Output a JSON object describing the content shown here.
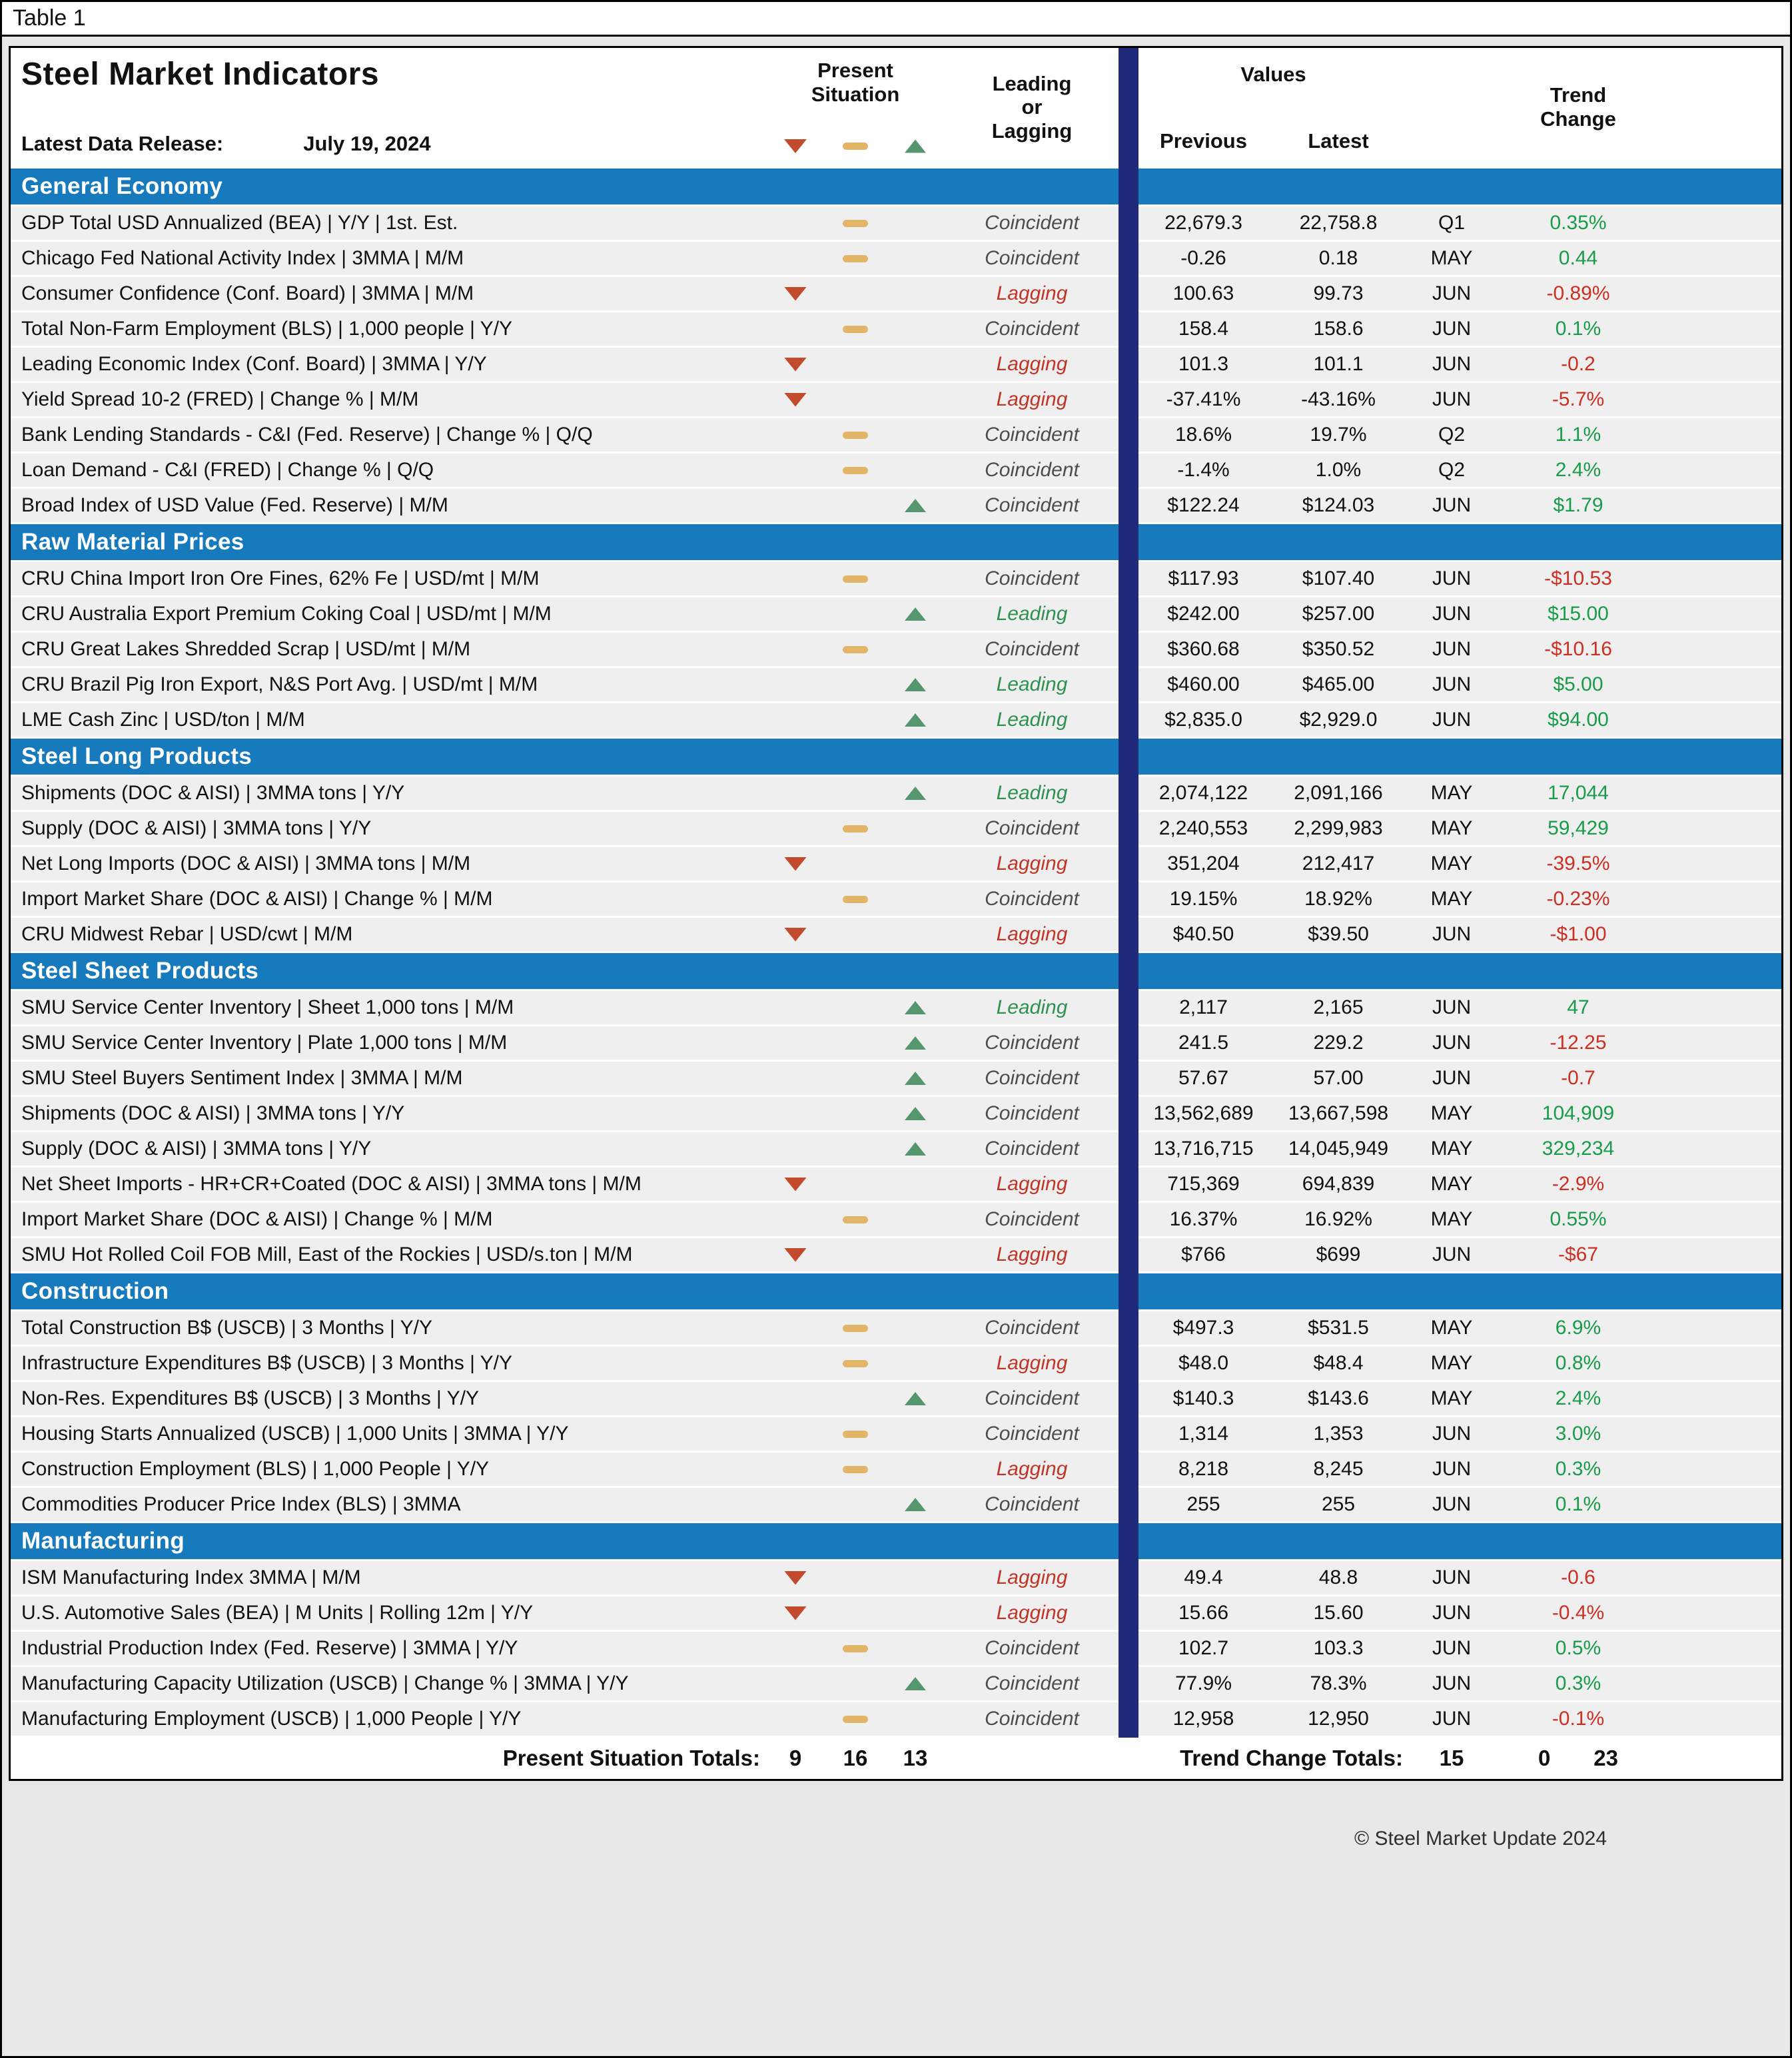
{
  "page": {
    "table_label": "Table 1",
    "copyright": "© Steel Market Update 2024"
  },
  "header": {
    "title": "Steel Market Indicators",
    "release_label": "Latest Data Release:",
    "release_date": "July 19, 2024",
    "col_present_situation": "Present\nSituation",
    "col_leading_or_lagging": "Leading\nor\nLagging",
    "col_values": "Values",
    "col_previous": "Previous",
    "col_latest": "Latest",
    "col_trend_change": "Trend\nChange"
  },
  "icons": {
    "down": "red-down-triangle",
    "flat": "tan-dash",
    "up": "green-up-triangle"
  },
  "colors": {
    "section_bar": "#177abd",
    "divider_bar": "#1f2a7a",
    "down_red": "#c24b2e",
    "flat_tan": "#e2b568",
    "up_green": "#55966e",
    "trend_up_text": "#199c49",
    "trend_down_text": "#cb3023",
    "lagging_text": "#c13526",
    "leading_text": "#2e9150",
    "row_gray": "#f0efef"
  },
  "chart_data": {
    "type": "table",
    "title": "Steel Market Indicators",
    "columns": [
      "Indicator",
      "Present Situation",
      "Leading or Lagging",
      "Previous",
      "Latest",
      "Period",
      "Trend Change"
    ],
    "sections": [
      {
        "title": "General Economy",
        "rows": [
          {
            "name": "GDP Total USD Annualized (BEA) | Y/Y | 1st. Est.",
            "situation": "flat",
            "classification": "Coincident",
            "previous": "22,679.3",
            "latest": "22,758.8",
            "period": "Q1",
            "trend": "0.35%",
            "trend_dir": "up"
          },
          {
            "name": "Chicago Fed National Activity Index | 3MMA | M/M",
            "situation": "flat",
            "classification": "Coincident",
            "previous": "-0.26",
            "latest": "0.18",
            "period": "MAY",
            "trend": "0.44",
            "trend_dir": "up"
          },
          {
            "name": "Consumer Confidence (Conf. Board) | 3MMA | M/M",
            "situation": "down",
            "classification": "Lagging",
            "previous": "100.63",
            "latest": "99.73",
            "period": "JUN",
            "trend": "-0.89%",
            "trend_dir": "down"
          },
          {
            "name": "Total Non-Farm Employment (BLS) | 1,000 people | Y/Y",
            "situation": "flat",
            "classification": "Coincident",
            "previous": "158.4",
            "latest": "158.6",
            "period": "JUN",
            "trend": "0.1%",
            "trend_dir": "up"
          },
          {
            "name": "Leading Economic Index (Conf. Board) | 3MMA | Y/Y",
            "situation": "down",
            "classification": "Lagging",
            "previous": "101.3",
            "latest": "101.1",
            "period": "JUN",
            "trend": "-0.2",
            "trend_dir": "down"
          },
          {
            "name": "Yield Spread 10-2 (FRED) | Change % | M/M",
            "situation": "down",
            "classification": "Lagging",
            "previous": "-37.41%",
            "latest": "-43.16%",
            "period": "JUN",
            "trend": "-5.7%",
            "trend_dir": "down"
          },
          {
            "name": "Bank Lending Standards - C&I (Fed. Reserve) | Change % | Q/Q",
            "situation": "flat",
            "classification": "Coincident",
            "previous": "18.6%",
            "latest": "19.7%",
            "period": "Q2",
            "trend": "1.1%",
            "trend_dir": "up"
          },
          {
            "name": "Loan Demand - C&I (FRED) | Change % | Q/Q",
            "situation": "flat",
            "classification": "Coincident",
            "previous": "-1.4%",
            "latest": "1.0%",
            "period": "Q2",
            "trend": "2.4%",
            "trend_dir": "up"
          },
          {
            "name": "Broad Index of USD Value (Fed. Reserve) | M/M",
            "situation": "up",
            "classification": "Coincident",
            "previous": "$122.24",
            "latest": "$124.03",
            "period": "JUN",
            "trend": "$1.79",
            "trend_dir": "up"
          }
        ]
      },
      {
        "title": "Raw Material Prices",
        "rows": [
          {
            "name": "CRU China Import Iron Ore Fines, 62% Fe | USD/mt | M/M",
            "situation": "flat",
            "classification": "Coincident",
            "previous": "$117.93",
            "latest": "$107.40",
            "period": "JUN",
            "trend": "-$10.53",
            "trend_dir": "down"
          },
          {
            "name": "CRU Australia Export Premium Coking Coal | USD/mt | M/M",
            "situation": "up",
            "classification": "Leading",
            "previous": "$242.00",
            "latest": "$257.00",
            "period": "JUN",
            "trend": "$15.00",
            "trend_dir": "up"
          },
          {
            "name": "CRU Great Lakes Shredded Scrap | USD/mt | M/M",
            "situation": "flat",
            "classification": "Coincident",
            "previous": "$360.68",
            "latest": "$350.52",
            "period": "JUN",
            "trend": "-$10.16",
            "trend_dir": "down"
          },
          {
            "name": "CRU Brazil Pig Iron Export, N&S Port Avg. | USD/mt | M/M",
            "situation": "up",
            "classification": "Leading",
            "previous": "$460.00",
            "latest": "$465.00",
            "period": "JUN",
            "trend": "$5.00",
            "trend_dir": "up"
          },
          {
            "name": "LME Cash Zinc | USD/ton | M/M",
            "situation": "up",
            "classification": "Leading",
            "previous": "$2,835.0",
            "latest": "$2,929.0",
            "period": "JUN",
            "trend": "$94.00",
            "trend_dir": "up"
          }
        ]
      },
      {
        "title": "Steel Long Products",
        "rows": [
          {
            "name": "Shipments (DOC & AISI) | 3MMA tons | Y/Y",
            "situation": "up",
            "classification": "Leading",
            "previous": "2,074,122",
            "latest": "2,091,166",
            "period": "MAY",
            "trend": "17,044",
            "trend_dir": "up"
          },
          {
            "name": "Supply (DOC & AISI) | 3MMA tons | Y/Y",
            "situation": "flat",
            "classification": "Coincident",
            "previous": "2,240,553",
            "latest": "2,299,983",
            "period": "MAY",
            "trend": "59,429",
            "trend_dir": "up"
          },
          {
            "name": "Net Long Imports (DOC & AISI) | 3MMA tons | M/M",
            "situation": "down",
            "classification": "Lagging",
            "previous": "351,204",
            "latest": "212,417",
            "period": "MAY",
            "trend": "-39.5%",
            "trend_dir": "down"
          },
          {
            "name": "Import Market Share (DOC & AISI) | Change % | M/M",
            "situation": "flat",
            "classification": "Coincident",
            "previous": "19.15%",
            "latest": "18.92%",
            "period": "MAY",
            "trend": "-0.23%",
            "trend_dir": "down"
          },
          {
            "name": "CRU Midwest Rebar | USD/cwt | M/M",
            "situation": "down",
            "classification": "Lagging",
            "previous": "$40.50",
            "latest": "$39.50",
            "period": "JUN",
            "trend": "-$1.00",
            "trend_dir": "down"
          }
        ]
      },
      {
        "title": "Steel Sheet Products",
        "rows": [
          {
            "name": "SMU Service Center Inventory | Sheet 1,000 tons | M/M",
            "situation": "up",
            "classification": "Leading",
            "previous": "2,117",
            "latest": "2,165",
            "period": "JUN",
            "trend": "47",
            "trend_dir": "up"
          },
          {
            "name": "SMU Service Center Inventory | Plate 1,000 tons | M/M",
            "situation": "up",
            "classification": "Coincident",
            "previous": "241.5",
            "latest": "229.2",
            "period": "JUN",
            "trend": "-12.25",
            "trend_dir": "down"
          },
          {
            "name": "SMU Steel Buyers Sentiment Index | 3MMA | M/M",
            "situation": "up",
            "classification": "Coincident",
            "previous": "57.67",
            "latest": "57.00",
            "period": "JUN",
            "trend": "-0.7",
            "trend_dir": "down"
          },
          {
            "name": "Shipments (DOC & AISI) | 3MMA tons | Y/Y",
            "situation": "up",
            "classification": "Coincident",
            "previous": "13,562,689",
            "latest": "13,667,598",
            "period": "MAY",
            "trend": "104,909",
            "trend_dir": "up"
          },
          {
            "name": "Supply (DOC & AISI) | 3MMA tons | Y/Y",
            "situation": "up",
            "classification": "Coincident",
            "previous": "13,716,715",
            "latest": "14,045,949",
            "period": "MAY",
            "trend": "329,234",
            "trend_dir": "up"
          },
          {
            "name": "Net Sheet Imports - HR+CR+Coated (DOC & AISI) | 3MMA tons | M/M",
            "situation": "down",
            "classification": "Lagging",
            "previous": "715,369",
            "latest": "694,839",
            "period": "MAY",
            "trend": "-2.9%",
            "trend_dir": "down"
          },
          {
            "name": "Import Market Share (DOC & AISI) | Change % | M/M",
            "situation": "flat",
            "classification": "Coincident",
            "previous": "16.37%",
            "latest": "16.92%",
            "period": "MAY",
            "trend": "0.55%",
            "trend_dir": "up"
          },
          {
            "name": "SMU Hot Rolled Coil FOB Mill, East of the Rockies | USD/s.ton | M/M",
            "situation": "down",
            "classification": "Lagging",
            "previous": "$766",
            "latest": "$699",
            "period": "JUN",
            "trend": "-$67",
            "trend_dir": "down"
          }
        ]
      },
      {
        "title": "Construction",
        "rows": [
          {
            "name": "Total Construction B$ (USCB) | 3 Months | Y/Y",
            "situation": "flat",
            "classification": "Coincident",
            "previous": "$497.3",
            "latest": "$531.5",
            "period": "MAY",
            "trend": "6.9%",
            "trend_dir": "up"
          },
          {
            "name": "Infrastructure Expenditures B$ (USCB) | 3 Months | Y/Y",
            "situation": "flat",
            "classification": "Lagging",
            "previous": "$48.0",
            "latest": "$48.4",
            "period": "MAY",
            "trend": "0.8%",
            "trend_dir": "up"
          },
          {
            "name": "Non-Res. Expenditures B$ (USCB) | 3 Months | Y/Y",
            "situation": "up",
            "classification": "Coincident",
            "previous": "$140.3",
            "latest": "$143.6",
            "period": "MAY",
            "trend": "2.4%",
            "trend_dir": "up"
          },
          {
            "name": "Housing Starts Annualized (USCB) | 1,000 Units | 3MMA | Y/Y",
            "situation": "flat",
            "classification": "Coincident",
            "previous": "1,314",
            "latest": "1,353",
            "period": "JUN",
            "trend": "3.0%",
            "trend_dir": "up"
          },
          {
            "name": "Construction Employment (BLS) | 1,000 People | Y/Y",
            "situation": "flat",
            "classification": "Lagging",
            "previous": "8,218",
            "latest": "8,245",
            "period": "JUN",
            "trend": "0.3%",
            "trend_dir": "up"
          },
          {
            "name": "Commodities Producer Price Index (BLS) | 3MMA",
            "situation": "up",
            "classification": "Coincident",
            "previous": "255",
            "latest": "255",
            "period": "JUN",
            "trend": "0.1%",
            "trend_dir": "up"
          }
        ]
      },
      {
        "title": "Manufacturing",
        "rows": [
          {
            "name": "ISM Manufacturing Index 3MMA | M/M",
            "situation": "down",
            "classification": "Lagging",
            "previous": "49.4",
            "latest": "48.8",
            "period": "JUN",
            "trend": "-0.6",
            "trend_dir": "down"
          },
          {
            "name": "U.S. Automotive Sales (BEA) | M Units | Rolling 12m | Y/Y",
            "situation": "down",
            "classification": "Lagging",
            "previous": "15.66",
            "latest": "15.60",
            "period": "JUN",
            "trend": "-0.4%",
            "trend_dir": "down"
          },
          {
            "name": "Industrial Production Index (Fed. Reserve) | 3MMA | Y/Y",
            "situation": "flat",
            "classification": "Coincident",
            "previous": "102.7",
            "latest": "103.3",
            "period": "JUN",
            "trend": "0.5%",
            "trend_dir": "up"
          },
          {
            "name": "Manufacturing Capacity Utilization (USCB) | Change % | 3MMA | Y/Y",
            "situation": "up",
            "classification": "Coincident",
            "previous": "77.9%",
            "latest": "78.3%",
            "period": "JUN",
            "trend": "0.3%",
            "trend_dir": "up"
          },
          {
            "name": "Manufacturing Employment (USCB) | 1,000 People | Y/Y",
            "situation": "flat",
            "classification": "Coincident",
            "previous": "12,958",
            "latest": "12,950",
            "period": "JUN",
            "trend": "-0.1%",
            "trend_dir": "down"
          }
        ]
      }
    ],
    "totals": {
      "present_label": "Present Situation Totals:",
      "present_down": "9",
      "present_flat": "16",
      "present_up": "13",
      "trend_label": "Trend Change Totals:",
      "trend_down": "15",
      "trend_flat": "0",
      "trend_up": "23"
    }
  }
}
